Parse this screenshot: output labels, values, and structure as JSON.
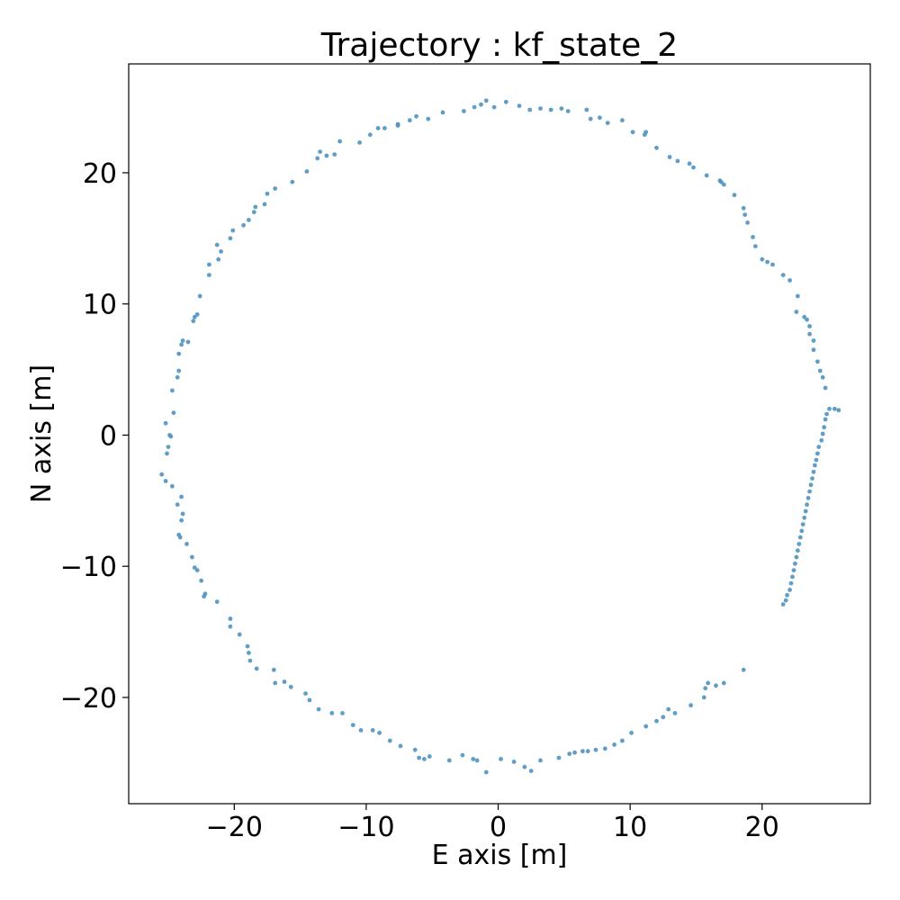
{
  "chart_data": {
    "type": "scatter",
    "title": "Trajectory : kf_state_2",
    "xlabel": "E axis [m]",
    "ylabel": "N axis [m]",
    "xlim": [
      -28,
      28.2
    ],
    "ylim": [
      -28.1,
      28.3
    ],
    "xticks": [
      -20,
      -10,
      0,
      10,
      20
    ],
    "yticks": [
      -20,
      -10,
      0,
      10,
      20
    ],
    "tick_labels": {
      "x": [
        "−20",
        "−10",
        "0",
        "10",
        "20"
      ],
      "y": [
        "−20",
        "−10",
        "0",
        "10",
        "20"
      ]
    },
    "grid": false,
    "legend": "none",
    "point_color": "#4f93c0",
    "series": [
      {
        "points": [
          [
            18.6,
            -17.9
          ],
          [
            17.1,
            -18.9
          ],
          [
            16.5,
            -19.1
          ],
          [
            15.9,
            -18.9
          ],
          [
            15.7,
            -19.3
          ],
          [
            15.6,
            -20.0
          ],
          [
            14.6,
            -20.6
          ],
          [
            13.4,
            -21.2
          ],
          [
            12.9,
            -20.9
          ],
          [
            12.5,
            -21.5
          ],
          [
            12.0,
            -21.8
          ],
          [
            11.2,
            -22.2
          ],
          [
            10.1,
            -22.7
          ],
          [
            9.4,
            -23.3
          ],
          [
            8.8,
            -23.6
          ],
          [
            8.1,
            -23.9
          ],
          [
            7.4,
            -24.0
          ],
          [
            6.8,
            -24.1
          ],
          [
            6.4,
            -24.1
          ],
          [
            5.8,
            -24.2
          ],
          [
            5.4,
            -24.3
          ],
          [
            4.6,
            -24.6
          ],
          [
            3.2,
            -24.8
          ],
          [
            2.5,
            -25.6
          ],
          [
            2.0,
            -25.3
          ],
          [
            1.2,
            -24.9
          ],
          [
            0.2,
            -24.7
          ],
          [
            -0.9,
            -25.7
          ],
          [
            -1.6,
            -24.8
          ],
          [
            -1.9,
            -24.7
          ],
          [
            -2.7,
            -24.4
          ],
          [
            -3.7,
            -24.8
          ],
          [
            -5.2,
            -24.5
          ],
          [
            -5.6,
            -24.7
          ],
          [
            -6.0,
            -24.6
          ],
          [
            -6.3,
            -24.0
          ],
          [
            -7.4,
            -23.7
          ],
          [
            -8.2,
            -23.3
          ],
          [
            -9.0,
            -22.7
          ],
          [
            -9.5,
            -22.5
          ],
          [
            -10.4,
            -22.5
          ],
          [
            -11.0,
            -22.1
          ],
          [
            -11.8,
            -21.2
          ],
          [
            -12.6,
            -21.2
          ],
          [
            -13.6,
            -20.9
          ],
          [
            -14.3,
            -20.2
          ],
          [
            -14.6,
            -19.7
          ],
          [
            -15.7,
            -19.2
          ],
          [
            -16.2,
            -18.8
          ],
          [
            -16.9,
            -18.9
          ],
          [
            -17.0,
            -17.9
          ],
          [
            -18.3,
            -17.8
          ],
          [
            -18.8,
            -17.2
          ],
          [
            -18.9,
            -16.6
          ],
          [
            -19.0,
            -16.1
          ],
          [
            -19.6,
            -15.2
          ],
          [
            -20.3,
            -14.6
          ],
          [
            -20.3,
            -14.0
          ],
          [
            -21.3,
            -12.7
          ],
          [
            -22.2,
            -12.1
          ],
          [
            -22.3,
            -12.3
          ],
          [
            -22.5,
            -11.1
          ],
          [
            -22.8,
            -10.3
          ],
          [
            -23.0,
            -10.1
          ],
          [
            -23.2,
            -9.3
          ],
          [
            -23.6,
            -8.3
          ],
          [
            -24.1,
            -7.8
          ],
          [
            -24.2,
            -7.6
          ],
          [
            -24.0,
            -6.5
          ],
          [
            -23.9,
            -6.0
          ],
          [
            -24.3,
            -5.3
          ],
          [
            -24.0,
            -4.7
          ],
          [
            -24.7,
            -3.9
          ],
          [
            -25.2,
            -3.5
          ],
          [
            -25.5,
            -3.0
          ],
          [
            -25.1,
            -1.4
          ],
          [
            -25.0,
            -0.9
          ],
          [
            -24.8,
            -0.1
          ],
          [
            -24.9,
            0.0
          ],
          [
            -25.2,
            0.9
          ],
          [
            -24.6,
            1.7
          ],
          [
            -24.7,
            3.4
          ],
          [
            -24.3,
            4.4
          ],
          [
            -24.2,
            4.9
          ],
          [
            -24.2,
            6.2
          ],
          [
            -24.0,
            6.9
          ],
          [
            -23.9,
            7.2
          ],
          [
            -23.5,
            7.1
          ],
          [
            -23.1,
            8.7
          ],
          [
            -23.0,
            9.0
          ],
          [
            -22.8,
            9.2
          ],
          [
            -22.6,
            10.6
          ],
          [
            -21.9,
            12.2
          ],
          [
            -21.9,
            13.0
          ],
          [
            -21.2,
            13.4
          ],
          [
            -21.0,
            14.0
          ],
          [
            -21.3,
            14.5
          ],
          [
            -20.3,
            15.0
          ],
          [
            -20.1,
            15.6
          ],
          [
            -19.3,
            16.0
          ],
          [
            -18.9,
            16.4
          ],
          [
            -18.5,
            17.0
          ],
          [
            -18.4,
            17.4
          ],
          [
            -17.7,
            17.6
          ],
          [
            -17.5,
            18.4
          ],
          [
            -16.9,
            18.8
          ],
          [
            -15.6,
            19.3
          ],
          [
            -14.5,
            20.1
          ],
          [
            -13.7,
            21.1
          ],
          [
            -13.5,
            21.6
          ],
          [
            -13.0,
            21.3
          ],
          [
            -12.4,
            21.4
          ],
          [
            -12.0,
            22.4
          ],
          [
            -10.5,
            22.3
          ],
          [
            -9.7,
            22.9
          ],
          [
            -9.1,
            23.4
          ],
          [
            -8.6,
            23.4
          ],
          [
            -7.6,
            23.7
          ],
          [
            -7.6,
            23.6
          ],
          [
            -6.7,
            24.0
          ],
          [
            -6.2,
            24.3
          ],
          [
            -5.3,
            24.1
          ],
          [
            -4.2,
            24.6
          ],
          [
            -2.6,
            24.7
          ],
          [
            -1.8,
            25.0
          ],
          [
            -1.3,
            25.2
          ],
          [
            -0.9,
            25.5
          ],
          [
            -0.3,
            25.0
          ],
          [
            0.6,
            25.4
          ],
          [
            1.6,
            25.1
          ],
          [
            2.4,
            24.8
          ],
          [
            3.2,
            24.9
          ],
          [
            4.0,
            24.8
          ],
          [
            4.8,
            24.9
          ],
          [
            5.3,
            24.7
          ],
          [
            6.7,
            24.8
          ],
          [
            7.0,
            24.1
          ],
          [
            7.7,
            24.2
          ],
          [
            8.3,
            23.8
          ],
          [
            9.4,
            24.0
          ],
          [
            10.2,
            23.1
          ],
          [
            11.1,
            22.9
          ],
          [
            11.2,
            23.1
          ],
          [
            12.0,
            21.9
          ],
          [
            13.0,
            21.2
          ],
          [
            13.6,
            20.9
          ],
          [
            14.5,
            20.7
          ],
          [
            14.8,
            20.4
          ],
          [
            15.8,
            19.8
          ],
          [
            16.8,
            19.4
          ],
          [
            16.9,
            19.3
          ],
          [
            17.1,
            19.1
          ],
          [
            17.9,
            18.3
          ],
          [
            18.6,
            17.3
          ],
          [
            18.7,
            16.8
          ],
          [
            18.9,
            16.2
          ],
          [
            19.3,
            15.1
          ],
          [
            19.5,
            14.4
          ],
          [
            20.0,
            13.4
          ],
          [
            20.4,
            13.2
          ],
          [
            20.8,
            13.0
          ],
          [
            21.6,
            12.2
          ],
          [
            22.1,
            11.8
          ],
          [
            22.7,
            10.6
          ],
          [
            22.6,
            9.4
          ],
          [
            23.2,
            9.0
          ],
          [
            23.4,
            8.8
          ],
          [
            23.6,
            8.3
          ],
          [
            23.6,
            7.7
          ],
          [
            23.9,
            7.2
          ],
          [
            23.9,
            6.5
          ],
          [
            24.2,
            5.6
          ],
          [
            24.4,
            4.9
          ],
          [
            24.6,
            4.4
          ],
          [
            24.8,
            3.6
          ],
          [
            25.1,
            2.0
          ],
          [
            25.5,
            2.0
          ],
          [
            25.8,
            1.9
          ],
          [
            24.9,
            1.6
          ],
          [
            24.8,
            1.2
          ],
          [
            24.7,
            0.6
          ],
          [
            24.6,
            0.1
          ],
          [
            24.5,
            -0.4
          ],
          [
            24.3,
            -0.9
          ],
          [
            24.2,
            -1.4
          ],
          [
            24.1,
            -1.9
          ],
          [
            24.0,
            -2.3
          ],
          [
            23.9,
            -2.8
          ],
          [
            23.8,
            -3.3
          ],
          [
            23.7,
            -3.8
          ],
          [
            23.6,
            -4.3
          ],
          [
            23.5,
            -4.8
          ],
          [
            23.4,
            -5.3
          ],
          [
            23.3,
            -5.8
          ],
          [
            23.2,
            -6.3
          ],
          [
            23.1,
            -6.8
          ],
          [
            23.0,
            -7.3
          ],
          [
            22.9,
            -7.8
          ],
          [
            22.8,
            -8.3
          ],
          [
            22.7,
            -8.8
          ],
          [
            22.6,
            -9.3
          ],
          [
            22.5,
            -9.8
          ],
          [
            22.4,
            -10.3
          ],
          [
            22.3,
            -10.8
          ],
          [
            22.2,
            -11.3
          ],
          [
            22.1,
            -11.8
          ],
          [
            21.9,
            -12.2
          ],
          [
            21.8,
            -12.6
          ],
          [
            21.6,
            -12.9
          ]
        ]
      }
    ]
  }
}
